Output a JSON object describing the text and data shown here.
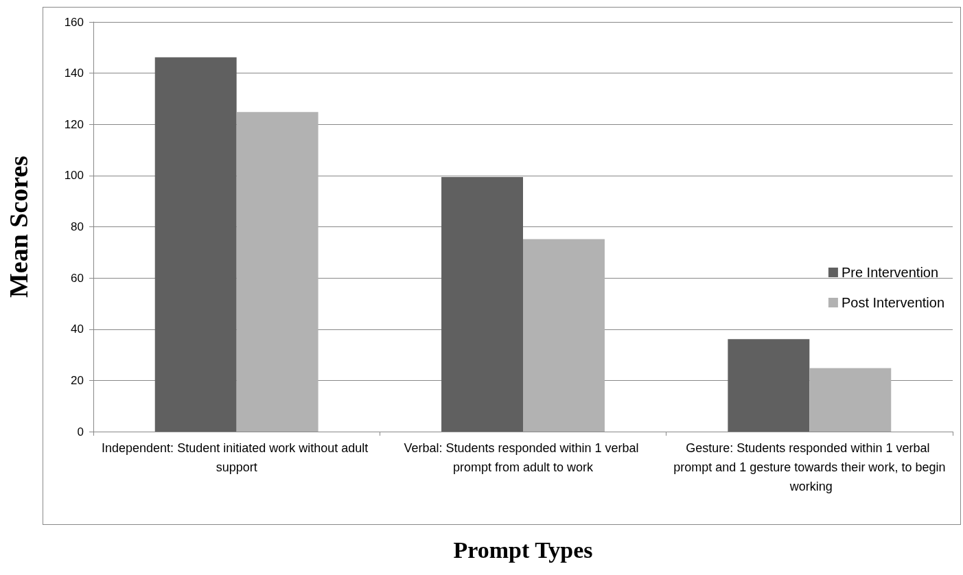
{
  "chart_data": {
    "type": "bar",
    "xlabel": "Prompt Types",
    "ylabel": "Mean Scores",
    "categories": [
      "Independent: Student initiated work without adult support",
      "Verbal: Students responded within 1 verbal prompt from adult to work",
      "Gesture: Students responded within 1 verbal prompt and 1 gesture towards their work, to begin working"
    ],
    "series": [
      {
        "name": "Pre Intervention",
        "color": "#606060",
        "values": [
          146.2,
          99.4,
          36.1
        ]
      },
      {
        "name": "Post Intervention",
        "color": "#b2b2b2",
        "values": [
          124.8,
          75.2,
          24.8
        ]
      }
    ],
    "ylim": [
      0,
      160
    ],
    "yticks": [
      0,
      20,
      40,
      60,
      80,
      100,
      120,
      140,
      160
    ],
    "grid": true,
    "legend": "right"
  }
}
